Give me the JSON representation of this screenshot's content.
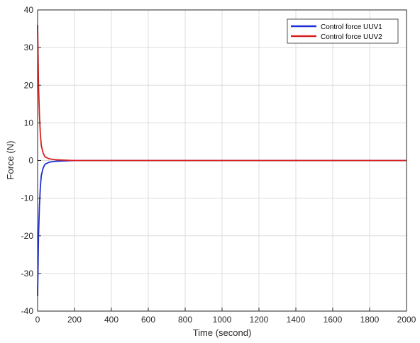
{
  "chart_data": {
    "type": "line",
    "xlabel": "Time (second)",
    "ylabel": "Force (N)",
    "xlim": [
      0,
      2000
    ],
    "ylim": [
      -40,
      40
    ],
    "xticks": [
      0,
      200,
      400,
      600,
      800,
      1000,
      1200,
      1400,
      1600,
      1800,
      2000
    ],
    "yticks": [
      -40,
      -30,
      -20,
      -10,
      0,
      10,
      20,
      30,
      40
    ],
    "grid": true,
    "legend_position": "top-right",
    "series": [
      {
        "name": "Control force UUV1",
        "color": "#1f2fd6",
        "x": [
          0,
          2,
          5,
          10,
          15,
          20,
          30,
          40,
          60,
          80,
          100,
          150,
          200,
          400,
          800,
          1200,
          1600,
          2000
        ],
        "y": [
          -36,
          -30,
          -20,
          -12,
          -7,
          -4,
          -2,
          -1,
          -0.5,
          -0.3,
          -0.2,
          -0.1,
          0,
          0,
          0,
          0,
          0,
          0
        ]
      },
      {
        "name": "Control force UUV2",
        "color": "#d62020",
        "x": [
          0,
          2,
          5,
          10,
          15,
          20,
          30,
          40,
          60,
          80,
          100,
          150,
          200,
          400,
          800,
          1200,
          1600,
          2000
        ],
        "y": [
          36,
          30,
          20,
          12,
          7,
          4,
          2,
          1,
          0.5,
          0.3,
          0.2,
          0.1,
          0,
          0,
          0,
          0,
          0,
          0
        ]
      }
    ]
  }
}
